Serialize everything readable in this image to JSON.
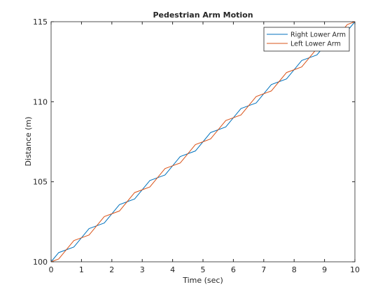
{
  "chart_data": {
    "type": "line",
    "title": "Pedestrian Arm Motion",
    "xlabel": "Time (sec)",
    "ylabel": "Distance (m)",
    "x": [
      0,
      0.25,
      0.5,
      0.75,
      1,
      1.25,
      1.5,
      1.75,
      2,
      2.25,
      2.5,
      2.75,
      3,
      3.25,
      3.5,
      3.75,
      4,
      4.25,
      4.5,
      4.75,
      5,
      5.25,
      5.5,
      5.75,
      6,
      6.25,
      6.5,
      6.75,
      7,
      7.25,
      7.5,
      7.75,
      8,
      8.25,
      8.5,
      8.75,
      9,
      9.25,
      9.5,
      9.75,
      10
    ],
    "series": [
      {
        "name": "Right Lower Arm",
        "color": "#0072bd",
        "values": [
          100,
          100.575,
          100.75,
          100.925,
          101.5,
          102.075,
          102.25,
          102.425,
          103,
          103.575,
          103.75,
          103.925,
          104.5,
          105.075,
          105.25,
          105.425,
          106,
          106.575,
          106.75,
          106.925,
          107.5,
          108.075,
          108.25,
          108.425,
          109,
          109.575,
          109.75,
          109.925,
          110.5,
          111.075,
          111.25,
          111.425,
          112,
          112.575,
          112.75,
          112.925,
          113.5,
          114.075,
          114.25,
          114.425,
          115
        ]
      },
      {
        "name": "Left Lower Arm",
        "color": "#d95319",
        "values": [
          100,
          100.175,
          100.75,
          101.325,
          101.5,
          101.675,
          102.25,
          102.825,
          103,
          103.175,
          103.75,
          104.325,
          104.5,
          104.675,
          105.25,
          105.825,
          106,
          106.175,
          106.75,
          107.325,
          107.5,
          107.675,
          108.25,
          108.825,
          109,
          109.175,
          109.75,
          110.325,
          110.5,
          110.675,
          111.25,
          111.825,
          112,
          112.175,
          112.75,
          113.325,
          113.5,
          113.675,
          114.25,
          114.825,
          115
        ]
      }
    ],
    "xlim": [
      0,
      10
    ],
    "xticks": [
      0,
      1,
      2,
      3,
      4,
      5,
      6,
      7,
      8,
      9,
      10
    ],
    "ylim": [
      100,
      115
    ],
    "yticks": [
      100,
      105,
      110,
      115
    ],
    "legend": "northeast",
    "grid": false
  }
}
